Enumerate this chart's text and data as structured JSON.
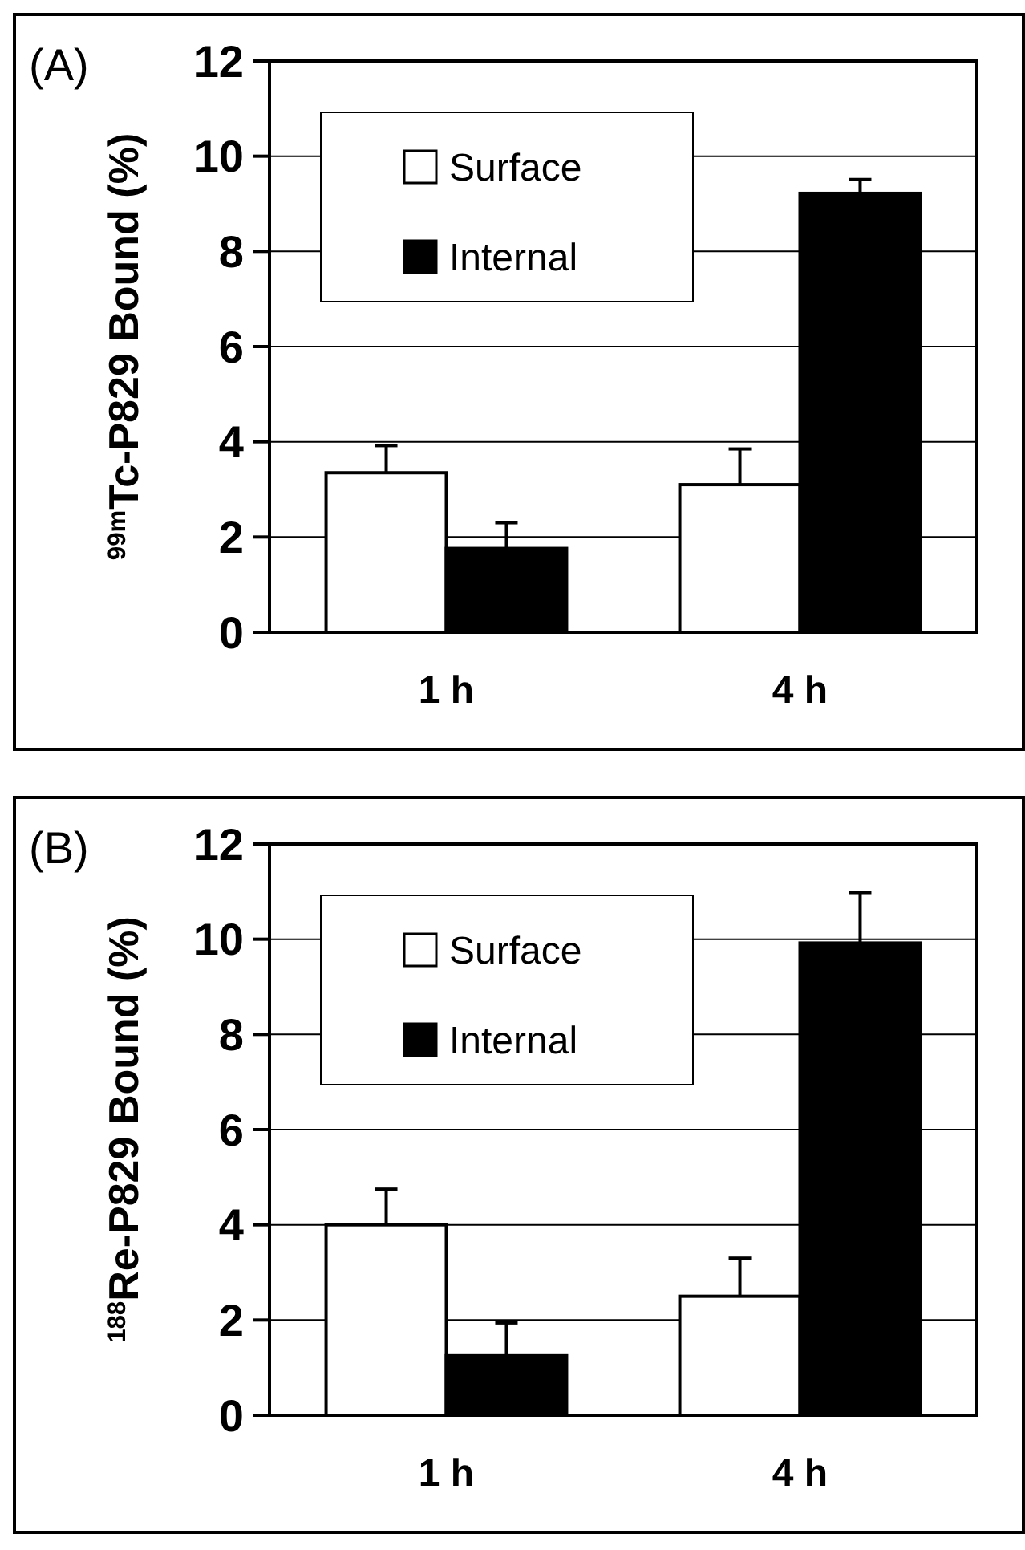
{
  "chart_data": [
    {
      "type": "bar",
      "title": "(A)",
      "ylabel": "$^{99m}$Tc-P829 Bound (%)",
      "categories": [
        "1 h",
        "4 h"
      ],
      "series": [
        {
          "name": "Surface",
          "color": "#ffffff",
          "values": [
            3.35,
            3.1
          ],
          "errors": [
            0.57,
            0.75
          ]
        },
        {
          "name": "Internal",
          "color": "#000000",
          "values": [
            1.76,
            9.22
          ],
          "errors": [
            0.54,
            0.29
          ]
        }
      ],
      "ylim": [
        0,
        12
      ],
      "yticks": [
        0,
        2,
        4,
        6,
        8,
        10,
        12
      ],
      "grid": "y",
      "legend": "top left"
    },
    {
      "type": "bar",
      "title": "(B)",
      "ylabel": "$^{188}$Re-P829 Bound (%)",
      "categories": [
        "1 h",
        "4 h"
      ],
      "series": [
        {
          "name": "Surface",
          "color": "#ffffff",
          "values": [
            4.0,
            2.5
          ],
          "errors": [
            0.75,
            0.8
          ]
        },
        {
          "name": "Internal",
          "color": "#000000",
          "values": [
            1.25,
            9.92
          ],
          "errors": [
            0.69,
            1.06
          ]
        }
      ],
      "ylim": [
        0,
        12
      ],
      "yticks": [
        0,
        2,
        4,
        6,
        8,
        10,
        12
      ],
      "grid": "y",
      "legend": "top left"
    }
  ]
}
